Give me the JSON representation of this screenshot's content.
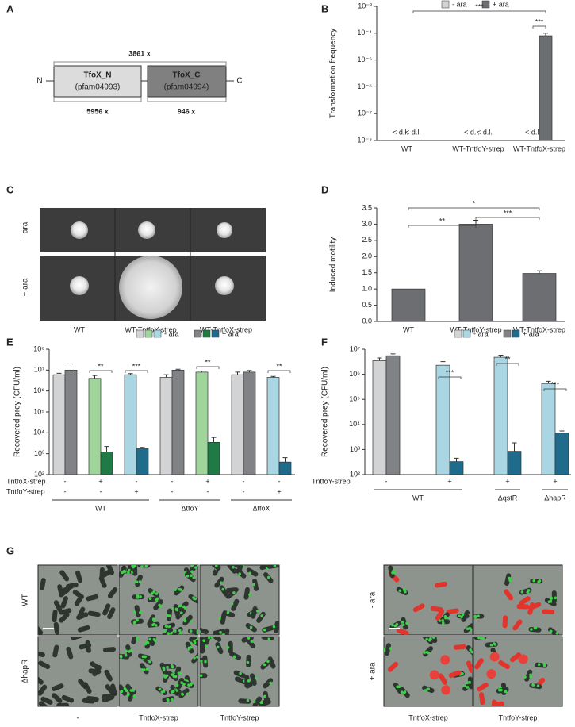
{
  "panel_labels": [
    "A",
    "B",
    "C",
    "D",
    "E",
    "F",
    "G"
  ],
  "diagram": {
    "n_terminus": "N",
    "c_terminus": "C",
    "domains": [
      {
        "name": "TfoX_N",
        "pfam": "(pfam04993)"
      },
      {
        "name": "TfoX_C",
        "pfam": "(pfam04994)"
      }
    ],
    "spans": [
      "3861 x",
      "5956 x",
      "946 x"
    ]
  },
  "plate_assay": {
    "rows": [
      "- ara",
      "+ ara"
    ],
    "columns": [
      "WT",
      "WT-TntfoY-strep",
      "WT-TntfoX-strep"
    ]
  },
  "microscopy": {
    "left_rows": [
      "WT",
      "ΔhapR"
    ],
    "left_columns": [
      "-",
      "TntfoX-strep",
      "TntfoY-strep"
    ],
    "right_rows": [
      "- ara",
      "+ ara"
    ],
    "right_columns": [
      "TntfoX-strep",
      "TntfoY-strep"
    ]
  },
  "chart_data": [
    {
      "type": "bar",
      "log_scale": true,
      "ylabel": "Transformation frequency",
      "categories": [
        "WT",
        "WT-TntfoY-strep",
        "WT-TntfoX-strep"
      ],
      "series": [
        {
          "name": "- ara",
          "color": "#d1d3d4",
          "values": [
            null,
            null,
            null
          ],
          "value_labels": [
            "< d.l.",
            "< d.l.",
            "< d.l."
          ]
        },
        {
          "name": "+ ara",
          "color": "#6d6e71",
          "values": [
            null,
            null,
            8e-05
          ],
          "value_labels": [
            "< d.l.",
            "< d.l.",
            null
          ],
          "errors": [
            null,
            null,
            2e-05
          ]
        }
      ],
      "ylim": [
        1e-08,
        0.001
      ],
      "yticks": [
        {
          "value": 1e-08,
          "label": "10⁻⁸"
        },
        {
          "value": 1e-07,
          "label": "10⁻⁷"
        },
        {
          "value": 1e-06,
          "label": "10⁻⁶"
        },
        {
          "value": 1e-05,
          "label": "10⁻⁵"
        },
        {
          "value": 0.0001,
          "label": "10⁻⁴"
        },
        {
          "value": 0.001,
          "label": "10⁻³"
        }
      ],
      "annotations": [
        "***",
        "***"
      ],
      "legend": "top"
    },
    {
      "type": "bar",
      "ylabel": "Induced motility",
      "categories": [
        "WT",
        "WT-TntfoY-strep",
        "WT-TntfoX-strep"
      ],
      "values": [
        1.0,
        3.0,
        1.48
      ],
      "errors": [
        null,
        0.12,
        0.08
      ],
      "color": "#6d6e71",
      "ylim": [
        0,
        3.5
      ],
      "yticks": [
        {
          "value": 0,
          "label": "0.0"
        },
        {
          "value": 0.5,
          "label": "0.5"
        },
        {
          "value": 1,
          "label": "1.0"
        },
        {
          "value": 1.5,
          "label": "1.5"
        },
        {
          "value": 2,
          "label": "2.0"
        },
        {
          "value": 2.5,
          "label": "2.5"
        },
        {
          "value": 3,
          "label": "3.0"
        },
        {
          "value": 3.5,
          "label": "3.5"
        }
      ],
      "annotations": [
        "*",
        "**",
        "***"
      ]
    },
    {
      "type": "bar",
      "log_scale": true,
      "ylabel": "Recovered prey (CFU/ml)",
      "conditions": [
        {
          "name": "TntfoX-strep",
          "values": [
            "-",
            "+",
            "-",
            "-",
            "+",
            "-",
            "-"
          ]
        },
        {
          "name": "TntfoY-strep",
          "values": [
            "-",
            "-",
            "+",
            "-",
            "-",
            "-",
            "+"
          ]
        }
      ],
      "groups": [
        "WT",
        "ΔtfoY",
        "ΔtfoX"
      ],
      "series": [
        {
          "name": "- ara",
          "colors": [
            "#d1d3d4",
            "#9fd59b",
            "#a9d6e2",
            "#d1d3d4",
            "#9fd59b",
            "#d1d3d4",
            "#a9d6e2"
          ],
          "values": [
            6000000,
            4000000,
            6000000,
            4500000,
            8000000,
            6000000,
            4500000
          ],
          "errors": [
            1000000,
            1500000,
            800000,
            1500000,
            1000000,
            2000000,
            500000
          ]
        },
        {
          "name": "+ ara",
          "colors": [
            "#808285",
            "#1f7a45",
            "#1f6b8c",
            "#808285",
            "#1f7a45",
            "#808285",
            "#1f6b8c"
          ],
          "values": [
            10000000,
            1200,
            1800,
            10000000,
            3500,
            8000000,
            400
          ],
          "errors": [
            4000000,
            1000,
            200,
            1000000,
            2500,
            1500000,
            250
          ]
        }
      ],
      "ylim": [
        100,
        100000000
      ],
      "yticks": [
        {
          "value": 100,
          "label": "10²"
        },
        {
          "value": 1000,
          "label": "10³"
        },
        {
          "value": 10000,
          "label": "10⁴"
        },
        {
          "value": 100000,
          "label": "10⁵"
        },
        {
          "value": 1000000,
          "label": "10⁶"
        },
        {
          "value": 10000000,
          "label": "10⁷"
        },
        {
          "value": 100000000,
          "label": "10⁸"
        }
      ],
      "annotations": [
        "**",
        "***",
        "**",
        "**"
      ],
      "legend": "top"
    },
    {
      "type": "bar",
      "log_scale": true,
      "ylabel": "Recovered prey (CFU/ml)",
      "conditions": [
        {
          "name": "TntfoY-strep",
          "values": [
            "-",
            "+",
            "+",
            "+"
          ]
        }
      ],
      "groups": [
        "WT",
        "ΔqstR",
        "ΔhapR"
      ],
      "series": [
        {
          "name": "- ara",
          "colors": [
            "#d1d3d4",
            "#a9d6e2",
            "#a9d6e2",
            "#a9d6e2"
          ],
          "values": [
            3500000,
            2300000,
            4800000,
            430000
          ],
          "errors": [
            1000000,
            900000,
            1000000,
            100000
          ]
        },
        {
          "name": "+ ara",
          "colors": [
            "#808285",
            "#1f6b8c",
            "#1f6b8c",
            "#1f6b8c"
          ],
          "values": [
            5500000,
            330,
            850,
            4500
          ],
          "errors": [
            1000000,
            120,
            1000,
            1000
          ]
        }
      ],
      "ylim": [
        100,
        10000000
      ],
      "yticks": [
        {
          "value": 100,
          "label": "10²"
        },
        {
          "value": 1000,
          "label": "10³"
        },
        {
          "value": 10000,
          "label": "10⁴"
        },
        {
          "value": 100000,
          "label": "10⁵"
        },
        {
          "value": 1000000,
          "label": "10⁶"
        },
        {
          "value": 10000000,
          "label": "10⁷"
        }
      ],
      "annotations": [
        "***",
        "**",
        "***"
      ],
      "legend": "top"
    }
  ]
}
